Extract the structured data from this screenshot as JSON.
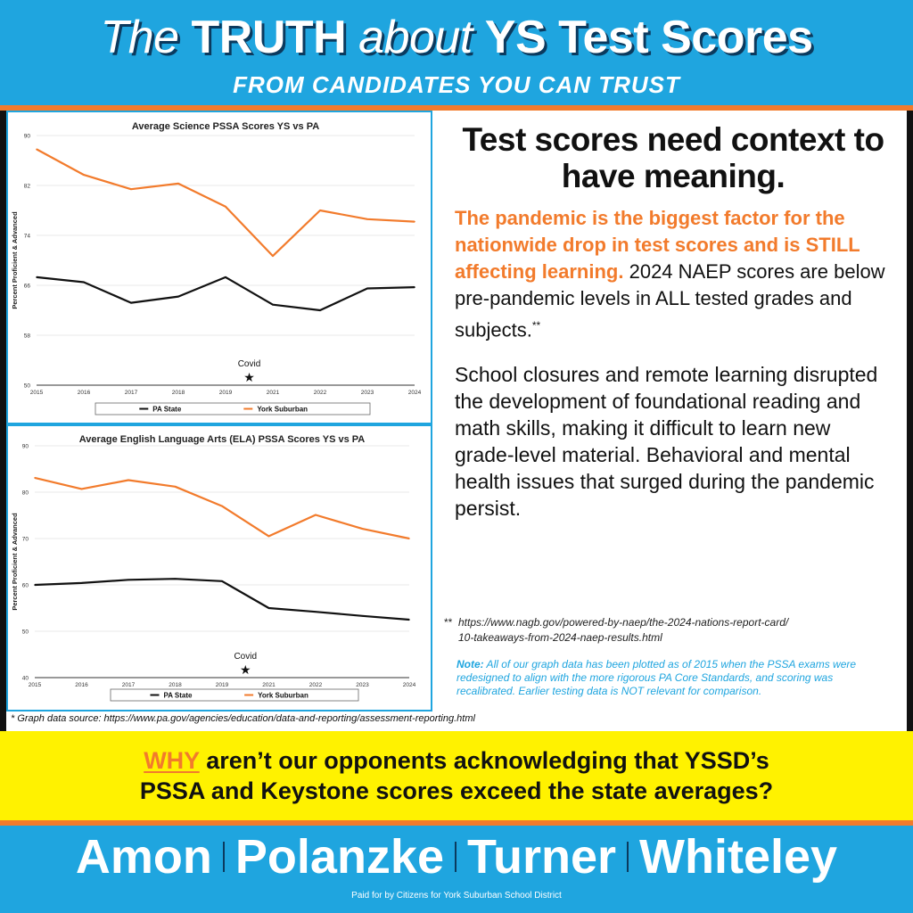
{
  "header": {
    "title_part1": "The",
    "title_part2": "TRUTH",
    "title_part3": "about",
    "title_part4": "YS Test Scores",
    "subtitle": "FROM CANDIDATES YOU CAN TRUST"
  },
  "chart_data": [
    {
      "type": "line",
      "title": "Average Science PSSA Scores YS vs PA",
      "ylabel": "Percent Proficient & Advanced",
      "xlabel": "",
      "x": [
        "2015",
        "2016",
        "2017",
        "2018",
        "2019",
        "2021",
        "2022",
        "2023",
        "2024"
      ],
      "y_ticks": [
        50,
        58,
        66,
        74,
        82,
        90
      ],
      "ylim": [
        50,
        90
      ],
      "grid": true,
      "legend_position": "bottom",
      "annotation": {
        "text": "Covid",
        "symbol": "★",
        "between": [
          "2019",
          "2021"
        ]
      },
      "series": [
        {
          "name": "PA State",
          "color": "#111111",
          "values": [
            67.3,
            66.5,
            63.2,
            64.2,
            67.3,
            62.9,
            62.0,
            65.5,
            65.7
          ]
        },
        {
          "name": "York Suburban",
          "color": "#f27b2c",
          "values": [
            87.8,
            83.7,
            81.4,
            82.3,
            78.6,
            70.7,
            78.0,
            76.6,
            76.2
          ]
        }
      ]
    },
    {
      "type": "line",
      "title": "Average English Language Arts (ELA) PSSA Scores YS vs PA",
      "ylabel": "Percent Proficient & Advanced",
      "xlabel": "",
      "x": [
        "2015",
        "2016",
        "2017",
        "2018",
        "2019",
        "2021",
        "2022",
        "2023",
        "2024"
      ],
      "y_ticks": [
        40,
        50,
        60,
        70,
        80,
        90
      ],
      "ylim": [
        40,
        90
      ],
      "grid": true,
      "legend_position": "bottom",
      "annotation": {
        "text": "Covid",
        "symbol": "★",
        "between": [
          "2019",
          "2021"
        ]
      },
      "series": [
        {
          "name": "PA State",
          "color": "#111111",
          "values": [
            60.0,
            60.4,
            61.1,
            61.3,
            60.8,
            55.0,
            54.2,
            53.3,
            52.5
          ]
        },
        {
          "name": "York Suburban",
          "color": "#f27b2c",
          "values": [
            83.1,
            80.7,
            82.6,
            81.2,
            77.0,
            70.5,
            75.1,
            72.1,
            70.0
          ]
        }
      ]
    }
  ],
  "right": {
    "headline": "Test scores need context to have meaning.",
    "para1_highlight": "The pandemic is the biggest factor  for the nationwide drop in test scores and is STILL affecting learning.",
    "para1_rest": " 2024 NAEP scores are below pre-pandemic levels in ALL tested grades and subjects.",
    "para1_mark": "**",
    "para2": "School closures and remote learning disrupted the development of foundational reading and math skills, making it difficult to learn new grade-level material. Behavioral and mental health issues that surged during the pandemic persist.",
    "footnote_mark": "**",
    "footnote_line1": "https://www.nagb.gov/powered-by-naep/the-2024-nations-report-card/",
    "footnote_line2": "10-takeaways-from-2024-naep-results.html",
    "note_label": "Note:",
    "note_text": " All of our graph data has been plotted as of 2015 when the PSSA exams were redesigned to align with the more rigorous PA Core Standards, and scoring was recalibrated. Earlier testing data is NOT relevant for comparison."
  },
  "source_note": "* Graph data source: https://www.pa.gov/agencies/education/data-and-reporting/assessment-reporting.html",
  "question": {
    "why": "WHY",
    "line1_rest": " aren’t our opponents acknowledging that YSSD’s",
    "line2": "PSSA and Keystone scores exceed the state averages?"
  },
  "candidates": [
    "Amon",
    "Polanzke",
    "Turner",
    "Whiteley"
  ],
  "paid_for": "Paid for by Citizens for York Suburban School District",
  "colors": {
    "brand_blue": "#1fa5df",
    "accent_orange": "#f27b2c",
    "yellow": "#fff200",
    "navy": "#0b3a5e"
  }
}
